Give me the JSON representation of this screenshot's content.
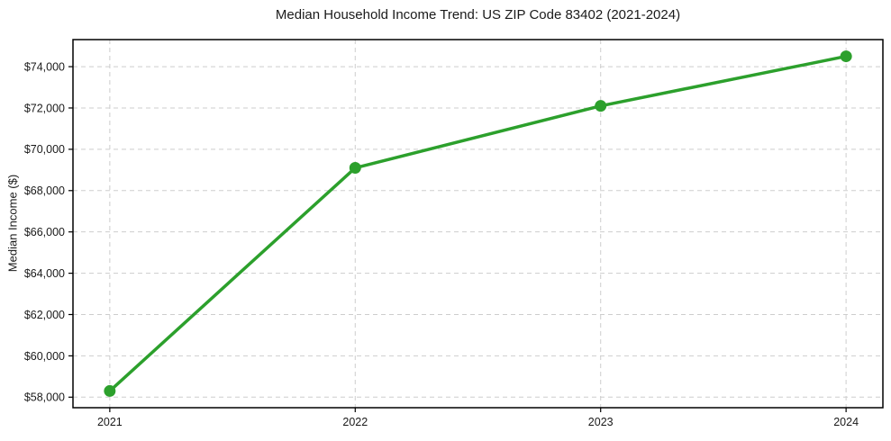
{
  "chart_data": {
    "type": "line",
    "title": "Median Household Income Trend: US ZIP Code 83402 (2021-2024)",
    "xlabel": "",
    "ylabel": "Median Income ($)",
    "x": [
      2021,
      2022,
      2023,
      2024
    ],
    "xtick_labels": [
      "2021",
      "2022",
      "2023",
      "2024"
    ],
    "series": [
      {
        "name": "Median Household Income",
        "values": [
          58300,
          69100,
          72100,
          74500
        ]
      }
    ],
    "yticks": [
      58000,
      60000,
      62000,
      64000,
      66000,
      68000,
      70000,
      72000,
      74000
    ],
    "ytick_labels": [
      "$58,000",
      "$60,000",
      "$62,000",
      "$64,000",
      "$66,000",
      "$68,000",
      "$70,000",
      "$72,000",
      "$74,000"
    ],
    "xlim": [
      2020.85,
      2024.15
    ],
    "ylim": [
      57490,
      75310
    ],
    "grid": true,
    "legend": "none",
    "colors": {
      "line": "#2ca02c",
      "marker": "#2ca02c",
      "grid": "#cdcdcd",
      "spine": "#000000",
      "text": "#1a1a1a",
      "background": "#ffffff"
    }
  }
}
